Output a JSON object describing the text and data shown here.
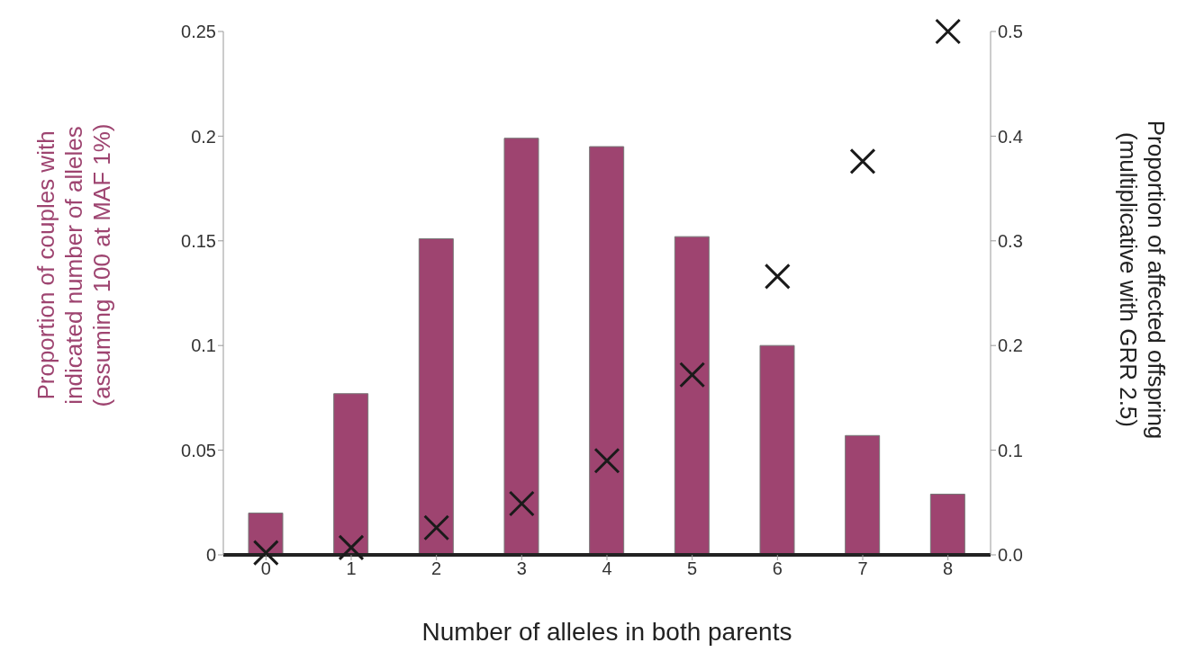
{
  "chart_data": {
    "type": "bar",
    "xlabel": "Number of alleles in both parents",
    "ylabel": "Proportion of couples with\nindicated number of alleles\n(assuming 100 at MAF 1%)",
    "y2label": "Proportion of affected offspring\n(multiplicative with GRR 2.5)",
    "categories": [
      "0",
      "1",
      "2",
      "3",
      "4",
      "5",
      "6",
      "7",
      "8"
    ],
    "series": [
      {
        "color": "#9e4470",
        "values": [
          0.02,
          0.077,
          0.151,
          0.199,
          0.195,
          0.152,
          0.1,
          0.057,
          0.029
        ]
      },
      {
        "type": "scatter",
        "axis": "y2",
        "color": "#1a1a1a",
        "marker": "cross",
        "values": [
          0.002,
          0.007,
          0.026,
          0.049,
          0.09,
          0.172,
          0.266,
          0.376,
          0.5
        ]
      }
    ],
    "ylim": [
      0,
      0.25
    ],
    "yticks": [
      0,
      0.05,
      0.1,
      0.15,
      0.2,
      0.25
    ],
    "y2lim": [
      0,
      0.5
    ],
    "y2ticks": [
      {
        "value": 0,
        "label": "0.0"
      },
      0.1,
      0.2,
      0.3,
      0.4,
      0.5
    ]
  }
}
